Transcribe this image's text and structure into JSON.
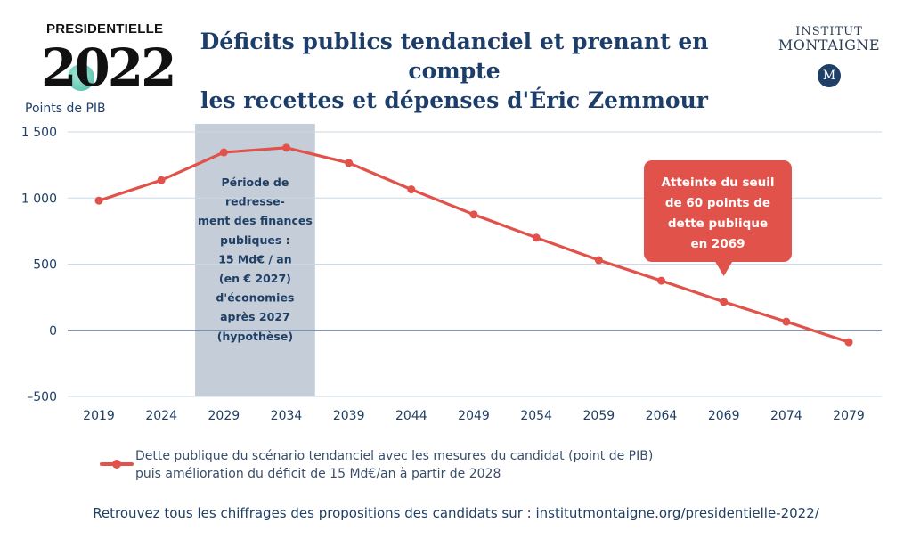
{
  "branding": {
    "left_logo_word": "PRESIDENTIELLE",
    "left_logo_year": "2022",
    "right_logo_line1": "INSTITUT",
    "right_logo_line2": "MONTAIGNE",
    "right_logo_badge": "M"
  },
  "title_line1": "Déficits publics tendanciel et prenant en compte",
  "title_line2": "les recettes et dépenses d'Éric Zemmour",
  "legend": {
    "line1": "Dette publique du scénario tendanciel avec les mesures du candidat (point de PIB)",
    "line2": "puis amélioration du déficit de 15 Md€/an à partir de 2028"
  },
  "footer": "Retrouvez tous les chiffrages des propositions des candidats sur : institutmontaigne.org/presidentielle-2022/",
  "colors": {
    "line": "#e0524a",
    "shade": "#c5ced8",
    "grid": "#c9d9e6",
    "zero": "#6f8aa8",
    "text": "#1f3f66"
  },
  "chart_data": {
    "type": "line",
    "ylabel": "Points de PIB",
    "ylim": [
      -500,
      1500
    ],
    "yticks": [
      -500,
      0,
      500,
      1000,
      1500
    ],
    "ytick_labels": [
      "–500",
      "0",
      "500",
      "1 000",
      "1 500"
    ],
    "x": [
      2019,
      2024,
      2029,
      2034,
      2039,
      2044,
      2049,
      2054,
      2059,
      2064,
      2069,
      2074,
      2079
    ],
    "xtick_labels": [
      "2019",
      "2024",
      "2029",
      "2034",
      "2039",
      "2044",
      "2049",
      "2054",
      "2059",
      "2064",
      "2069",
      "2074",
      "2079"
    ],
    "series": [
      {
        "name": "Dette publique du scénario tendanciel avec les mesures du candidat (point de PIB) puis amélioration du déficit de 15 Md€/an à partir de 2028",
        "points": [
          {
            "x": 2019,
            "y": 980
          },
          {
            "x": 2024,
            "y": 1135
          },
          {
            "x": 2029,
            "y": 1345
          },
          {
            "x": 2034,
            "y": 1380
          },
          {
            "x": 2039,
            "y": 1265
          },
          {
            "x": 2044,
            "y": 1065
          },
          {
            "x": 2049,
            "y": 875
          },
          {
            "x": 2054,
            "y": 700
          },
          {
            "x": 2059,
            "y": 530
          },
          {
            "x": 2064,
            "y": 375
          },
          {
            "x": 2069,
            "y": 215
          },
          {
            "x": 2074,
            "y": 65
          },
          {
            "x": 2079,
            "y": -90
          }
        ]
      }
    ],
    "shaded_region": {
      "x_start": 2026.7,
      "x_end": 2036.3,
      "lines": [
        "Période de",
        "redresse-",
        "ment des finances",
        "publiques :",
        "15 Md€ / an",
        "(en € 2027)",
        "d'économies",
        "après 2027",
        "(hypothèse)"
      ]
    },
    "callout": {
      "lines": [
        "Atteinte du seuil",
        "de 60 points de",
        "dette publique",
        "en 2069"
      ],
      "anchor_x": 2069
    },
    "grid": true
  }
}
